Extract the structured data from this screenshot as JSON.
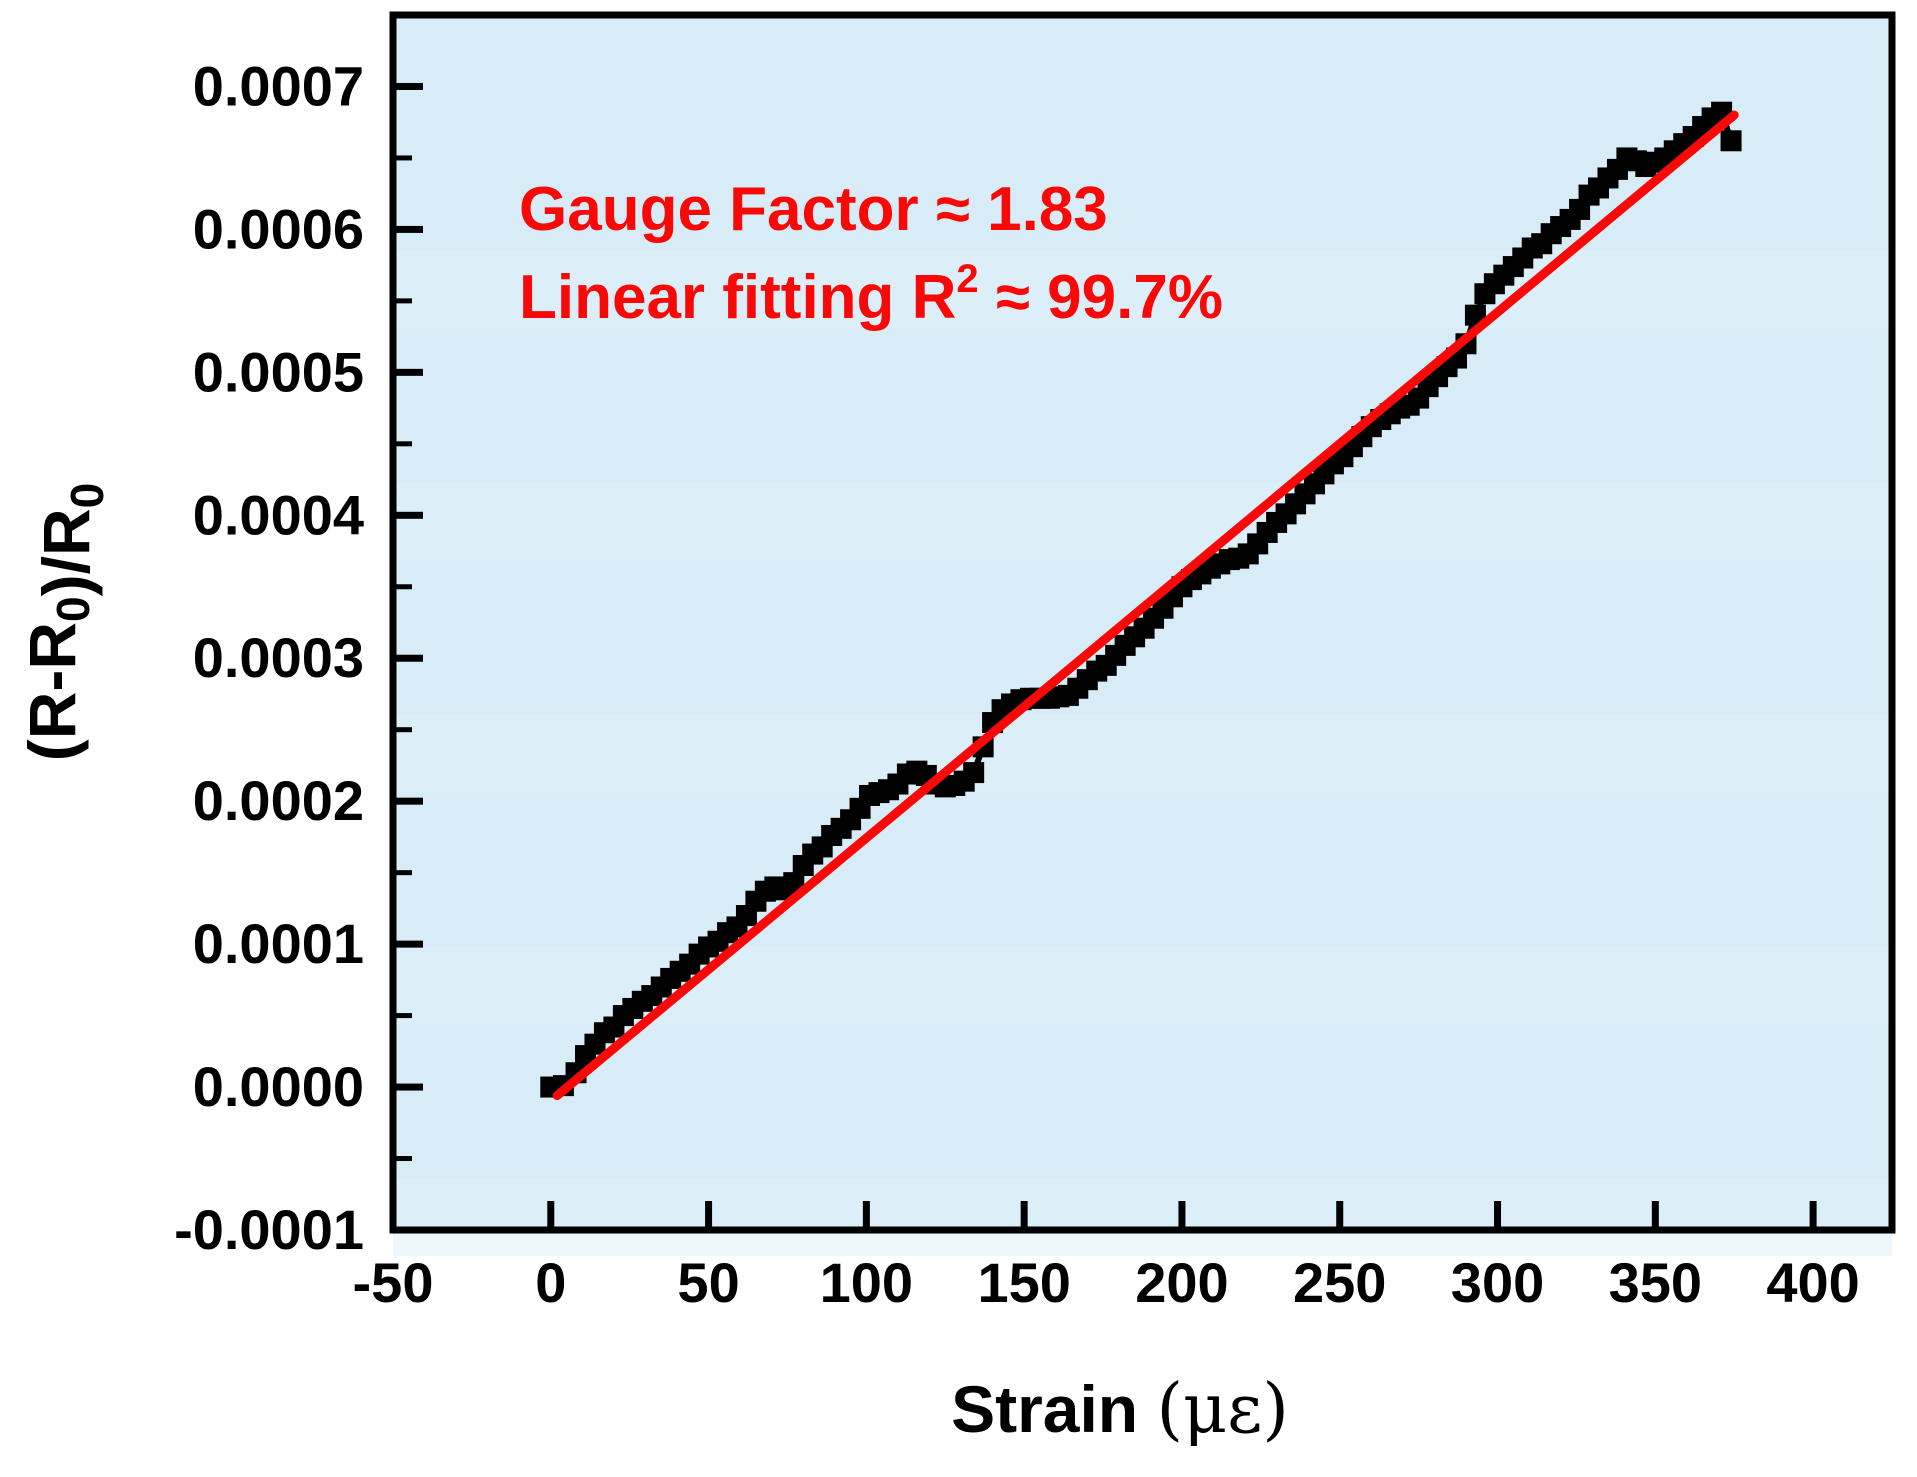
{
  "figure": {
    "background_color": "#ffffff",
    "plot_background_color": "#d8ecf7",
    "plot_band_color": "#e0f1fa",
    "frame_color": "#000000",
    "annotation": {
      "color": "#f90808",
      "line1": "Gauge Factor ≈ 1.83",
      "line2_prefix": "Linear fitting R",
      "line2_sup": "2",
      "line2_suffix": " ≈ 99.7%"
    }
  },
  "chart_data": {
    "type": "scatter",
    "title": "",
    "xlabel_main": "Strain",
    "xlabel_unit": "(με)",
    "ylabel_parts": [
      {
        "t": "(R-R"
      },
      {
        "t": "0",
        "sub": true
      },
      {
        "t": ")/R"
      },
      {
        "t": "0",
        "sub": true
      }
    ],
    "xlim": [
      -50,
      425
    ],
    "ylim_scaled": [
      -1.0,
      7.5
    ],
    "y_scale": 0.0001,
    "grid": false,
    "legend": "none",
    "x_ticks": [
      -50,
      0,
      50,
      100,
      150,
      200,
      250,
      300,
      350,
      400
    ],
    "x_tick_labels": [
      "-50",
      "0",
      "50",
      "100",
      "150",
      "200",
      "250",
      "300",
      "350",
      "400"
    ],
    "y_ticks_scaled": [
      -1,
      0,
      1,
      2,
      3,
      4,
      5,
      6,
      7
    ],
    "y_tick_labels": [
      "-0.0001",
      "0.0000",
      "0.0001",
      "0.0002",
      "0.0003",
      "0.0004",
      "0.0005",
      "0.0006",
      "0.0007"
    ],
    "y_minor_step_scaled": 0.5,
    "gauge_factor": 1.83,
    "r_squared_percent": 99.7,
    "series": [
      {
        "name": "measured-response",
        "marker": "square",
        "color": "#000000",
        "x": [
          0,
          4,
          8,
          11,
          14,
          17,
          20,
          23,
          26,
          29,
          32,
          35,
          38,
          41,
          44,
          47,
          50,
          53,
          56,
          59,
          62,
          65,
          68,
          71,
          74,
          77,
          80,
          83,
          86,
          89,
          92,
          95,
          98,
          101,
          104,
          107,
          110,
          113,
          116,
          119,
          122,
          125,
          128,
          131,
          134,
          137,
          140,
          143,
          146,
          149,
          152,
          155,
          158,
          161,
          164,
          167,
          170,
          173,
          176,
          179,
          182,
          185,
          188,
          191,
          194,
          197,
          200,
          203,
          206,
          209,
          212,
          215,
          218,
          221,
          224,
          227,
          230,
          233,
          236,
          239,
          242,
          245,
          248,
          251,
          254,
          257,
          260,
          263,
          266,
          269,
          272,
          275,
          278,
          281,
          284,
          287,
          290,
          293,
          296,
          299,
          302,
          305,
          308,
          311,
          314,
          317,
          320,
          323,
          326,
          329,
          332,
          335,
          338,
          341,
          344,
          347,
          350,
          353,
          356,
          359,
          362,
          365,
          368,
          371,
          374
        ],
        "y_scaled": [
          0.0,
          0.01,
          0.1,
          0.22,
          0.3,
          0.38,
          0.42,
          0.5,
          0.55,
          0.6,
          0.64,
          0.7,
          0.76,
          0.81,
          0.86,
          0.93,
          0.98,
          1.02,
          1.08,
          1.12,
          1.2,
          1.3,
          1.37,
          1.4,
          1.38,
          1.43,
          1.55,
          1.63,
          1.68,
          1.76,
          1.81,
          1.87,
          1.95,
          2.04,
          2.06,
          2.08,
          2.12,
          2.19,
          2.21,
          2.18,
          2.12,
          2.1,
          2.11,
          2.14,
          2.2,
          2.38,
          2.55,
          2.64,
          2.68,
          2.71,
          2.72,
          2.72,
          2.72,
          2.73,
          2.74,
          2.79,
          2.85,
          2.91,
          2.95,
          3.02,
          3.09,
          3.15,
          3.21,
          3.28,
          3.35,
          3.43,
          3.5,
          3.55,
          3.59,
          3.63,
          3.66,
          3.69,
          3.7,
          3.73,
          3.8,
          3.88,
          3.95,
          4.01,
          4.08,
          4.15,
          4.22,
          4.29,
          4.36,
          4.41,
          4.48,
          4.55,
          4.62,
          4.67,
          4.71,
          4.75,
          4.77,
          4.82,
          4.9,
          4.97,
          5.04,
          5.1,
          5.2,
          5.4,
          5.55,
          5.62,
          5.68,
          5.74,
          5.8,
          5.87,
          5.9,
          5.97,
          6.02,
          6.07,
          6.14,
          6.24,
          6.29,
          6.36,
          6.42,
          6.5,
          6.48,
          6.44,
          6.47,
          6.5,
          6.55,
          6.6,
          6.65,
          6.72,
          6.78,
          6.82,
          6.62
        ]
      },
      {
        "name": "linear-fit",
        "marker": "none",
        "color": "#f90808",
        "x": [
          2,
          375
        ],
        "y_scaled": [
          -0.06,
          6.8
        ]
      }
    ]
  }
}
